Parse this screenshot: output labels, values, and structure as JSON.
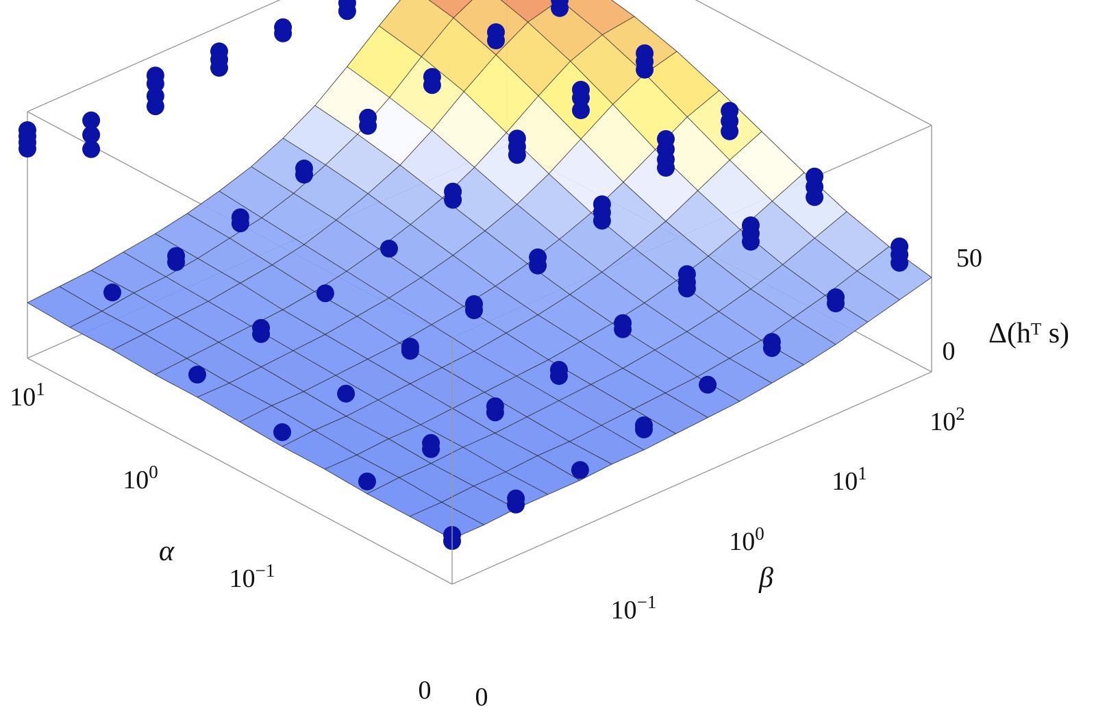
{
  "chart_data": {
    "type": "surface",
    "title": "",
    "xlabel": "α",
    "ylabel": "β",
    "zlabel": "Δ(hᵀ s)",
    "alpha_ticks": [
      {
        "value": "0",
        "base": "0",
        "exp": ""
      },
      {
        "value": "1e-1",
        "base": "10",
        "exp": "−1"
      },
      {
        "value": "1e0",
        "base": "10",
        "exp": "0"
      },
      {
        "value": "1e1",
        "base": "10",
        "exp": "1"
      }
    ],
    "beta_ticks": [
      {
        "value": "0",
        "base": "0",
        "exp": ""
      },
      {
        "value": "1e-1",
        "base": "10",
        "exp": "−1"
      },
      {
        "value": "1e0",
        "base": "10",
        "exp": "0"
      },
      {
        "value": "1e1",
        "base": "10",
        "exp": "1"
      },
      {
        "value": "1e2",
        "base": "10",
        "exp": "2"
      }
    ],
    "z_ticks": [
      0,
      50
    ],
    "zlim": [
      -20,
      100
    ],
    "grid_alpha_steps": 11,
    "grid_beta_steps": 16,
    "z_grid": [
      [
        2,
        2,
        3,
        3,
        3,
        4,
        4,
        5,
        6,
        7,
        9,
        11,
        14,
        18,
        22,
        26
      ],
      [
        2,
        2,
        3,
        3,
        4,
        4,
        5,
        6,
        7,
        8,
        10,
        12,
        16,
        20,
        25,
        30
      ],
      [
        2,
        3,
        3,
        4,
        4,
        5,
        6,
        7,
        8,
        10,
        12,
        15,
        19,
        24,
        30,
        36
      ],
      [
        3,
        3,
        4,
        4,
        5,
        6,
        7,
        8,
        10,
        12,
        15,
        19,
        24,
        30,
        37,
        44
      ],
      [
        3,
        4,
        4,
        5,
        6,
        7,
        8,
        10,
        12,
        15,
        19,
        24,
        30,
        38,
        46,
        53
      ],
      [
        4,
        5,
        5,
        6,
        7,
        8,
        10,
        12,
        15,
        19,
        24,
        30,
        38,
        47,
        56,
        62
      ],
      [
        5,
        5,
        6,
        7,
        8,
        10,
        12,
        15,
        19,
        24,
        30,
        38,
        48,
        58,
        66,
        70
      ],
      [
        5,
        6,
        7,
        8,
        9,
        11,
        14,
        18,
        23,
        29,
        37,
        47,
        58,
        68,
        74,
        76
      ],
      [
        6,
        7,
        8,
        9,
        11,
        13,
        16,
        21,
        27,
        34,
        44,
        56,
        67,
        76,
        80,
        80
      ],
      [
        6,
        7,
        9,
        10,
        12,
        15,
        18,
        23,
        30,
        38,
        49,
        62,
        74,
        82,
        84,
        82
      ],
      [
        7,
        8,
        9,
        11,
        13,
        16,
        20,
        25,
        32,
        41,
        53,
        66,
        78,
        86,
        86,
        84
      ]
    ],
    "scatter_points": [
      {
        "alpha": 0.0,
        "beta": 0.0,
        "z": [
          1,
          4
        ]
      },
      {
        "alpha": 0.2,
        "beta": 0.0,
        "z": [
          8
        ]
      },
      {
        "alpha": 0.4,
        "beta": 0.0,
        "z": [
          10
        ]
      },
      {
        "alpha": 0.6,
        "beta": 0.0,
        "z": [
          16
        ]
      },
      {
        "alpha": 0.8,
        "beta": 0.0,
        "z": [
          34
        ]
      },
      {
        "alpha": 1.0,
        "beta": 0.0,
        "z": [
          82,
          85,
          88,
          91
        ]
      },
      {
        "alpha": 0.0,
        "beta": 0.133,
        "z": [
          5,
          8
        ]
      },
      {
        "alpha": 0.2,
        "beta": 0.133,
        "z": [
          10,
          13
        ]
      },
      {
        "alpha": 0.4,
        "beta": 0.133,
        "z": [
          15
        ]
      },
      {
        "alpha": 0.6,
        "beta": 0.133,
        "z": [
          22,
          25
        ]
      },
      {
        "alpha": 0.8,
        "beta": 0.133,
        "z": [
          35,
          38
        ]
      },
      {
        "alpha": 1.0,
        "beta": 0.133,
        "z": [
          68,
          75,
          82
        ]
      },
      {
        "alpha": 0.0,
        "beta": 0.267,
        "z": [
          8
        ]
      },
      {
        "alpha": 0.2,
        "beta": 0.267,
        "z": [
          14,
          17
        ]
      },
      {
        "alpha": 0.4,
        "beta": 0.267,
        "z": [
          22,
          24
        ]
      },
      {
        "alpha": 0.6,
        "beta": 0.267,
        "z": [
          28
        ]
      },
      {
        "alpha": 0.8,
        "beta": 0.267,
        "z": [
          40,
          43
        ]
      },
      {
        "alpha": 1.0,
        "beta": 0.267,
        "z": [
          75,
          80,
          86,
          90
        ]
      },
      {
        "alpha": 0.0,
        "beta": 0.4,
        "z": [
          14,
          16
        ]
      },
      {
        "alpha": 0.2,
        "beta": 0.4,
        "z": [
          18,
          21
        ]
      },
      {
        "alpha": 0.4,
        "beta": 0.4,
        "z": [
          28,
          31
        ]
      },
      {
        "alpha": 0.6,
        "beta": 0.4,
        "z": [
          36
        ]
      },
      {
        "alpha": 0.8,
        "beta": 0.4,
        "z": [
          50,
          53
        ]
      },
      {
        "alpha": 1.0,
        "beta": 0.4,
        "z": [
          80,
          84,
          88
        ]
      },
      {
        "alpha": 0.0,
        "beta": 0.533,
        "z": [
          22
        ]
      },
      {
        "alpha": 0.2,
        "beta": 0.533,
        "z": [
          27,
          30
        ]
      },
      {
        "alpha": 0.4,
        "beta": 0.533,
        "z": [
          36,
          40
        ]
      },
      {
        "alpha": 0.6,
        "beta": 0.533,
        "z": [
          46,
          50
        ]
      },
      {
        "alpha": 0.8,
        "beta": 0.533,
        "z": [
          60,
          64
        ]
      },
      {
        "alpha": 1.0,
        "beta": 0.533,
        "z": [
          83,
          86
        ]
      },
      {
        "alpha": 0.0,
        "beta": 0.667,
        "z": [
          26,
          29
        ]
      },
      {
        "alpha": 0.2,
        "beta": 0.667,
        "z": [
          33,
          36,
          40
        ]
      },
      {
        "alpha": 0.4,
        "beta": 0.667,
        "z": [
          44,
          48,
          52
        ]
      },
      {
        "alpha": 0.6,
        "beta": 0.667,
        "z": [
          54,
          58,
          62
        ]
      },
      {
        "alpha": 0.8,
        "beta": 0.667,
        "z": [
          66,
          70
        ]
      },
      {
        "alpha": 1.0,
        "beta": 0.667,
        "z": [
          80,
          84
        ]
      },
      {
        "alpha": 0.0,
        "beta": 0.8,
        "z": [
          34,
          37
        ]
      },
      {
        "alpha": 0.2,
        "beta": 0.8,
        "z": [
          42,
          46,
          50
        ]
      },
      {
        "alpha": 0.4,
        "beta": 0.8,
        "z": [
          56,
          60,
          65,
          70
        ]
      },
      {
        "alpha": 0.6,
        "beta": 0.8,
        "z": [
          62,
          68,
          72
        ]
      },
      {
        "alpha": 0.8,
        "beta": 0.8,
        "z": [
          74,
          78
        ]
      },
      {
        "alpha": 1.0,
        "beta": 0.8,
        "z": [
          82,
          86,
          90
        ]
      },
      {
        "alpha": 0.0,
        "beta": 0.933,
        "z": [
          40,
          44,
          48
        ]
      },
      {
        "alpha": 0.2,
        "beta": 0.933,
        "z": [
          50,
          55,
          60
        ]
      },
      {
        "alpha": 0.4,
        "beta": 0.933,
        "z": [
          60,
          65,
          70
        ]
      },
      {
        "alpha": 0.6,
        "beta": 0.933,
        "z": [
          68,
          72,
          76
        ]
      },
      {
        "alpha": 0.8,
        "beta": 0.933,
        "z": [
          76,
          80,
          84
        ]
      },
      {
        "alpha": 1.0,
        "beta": 0.933,
        "z": [
          84,
          88,
          92,
          96
        ]
      }
    ],
    "colors": {
      "surface_low": "#6f8ef5",
      "surface_mid": "#ffffff",
      "surface_high": "#fff27a",
      "surface_peak": "#ee6f5d",
      "points": "#0a13a6",
      "grid": "#222222",
      "box": "#9a9a9a"
    }
  }
}
